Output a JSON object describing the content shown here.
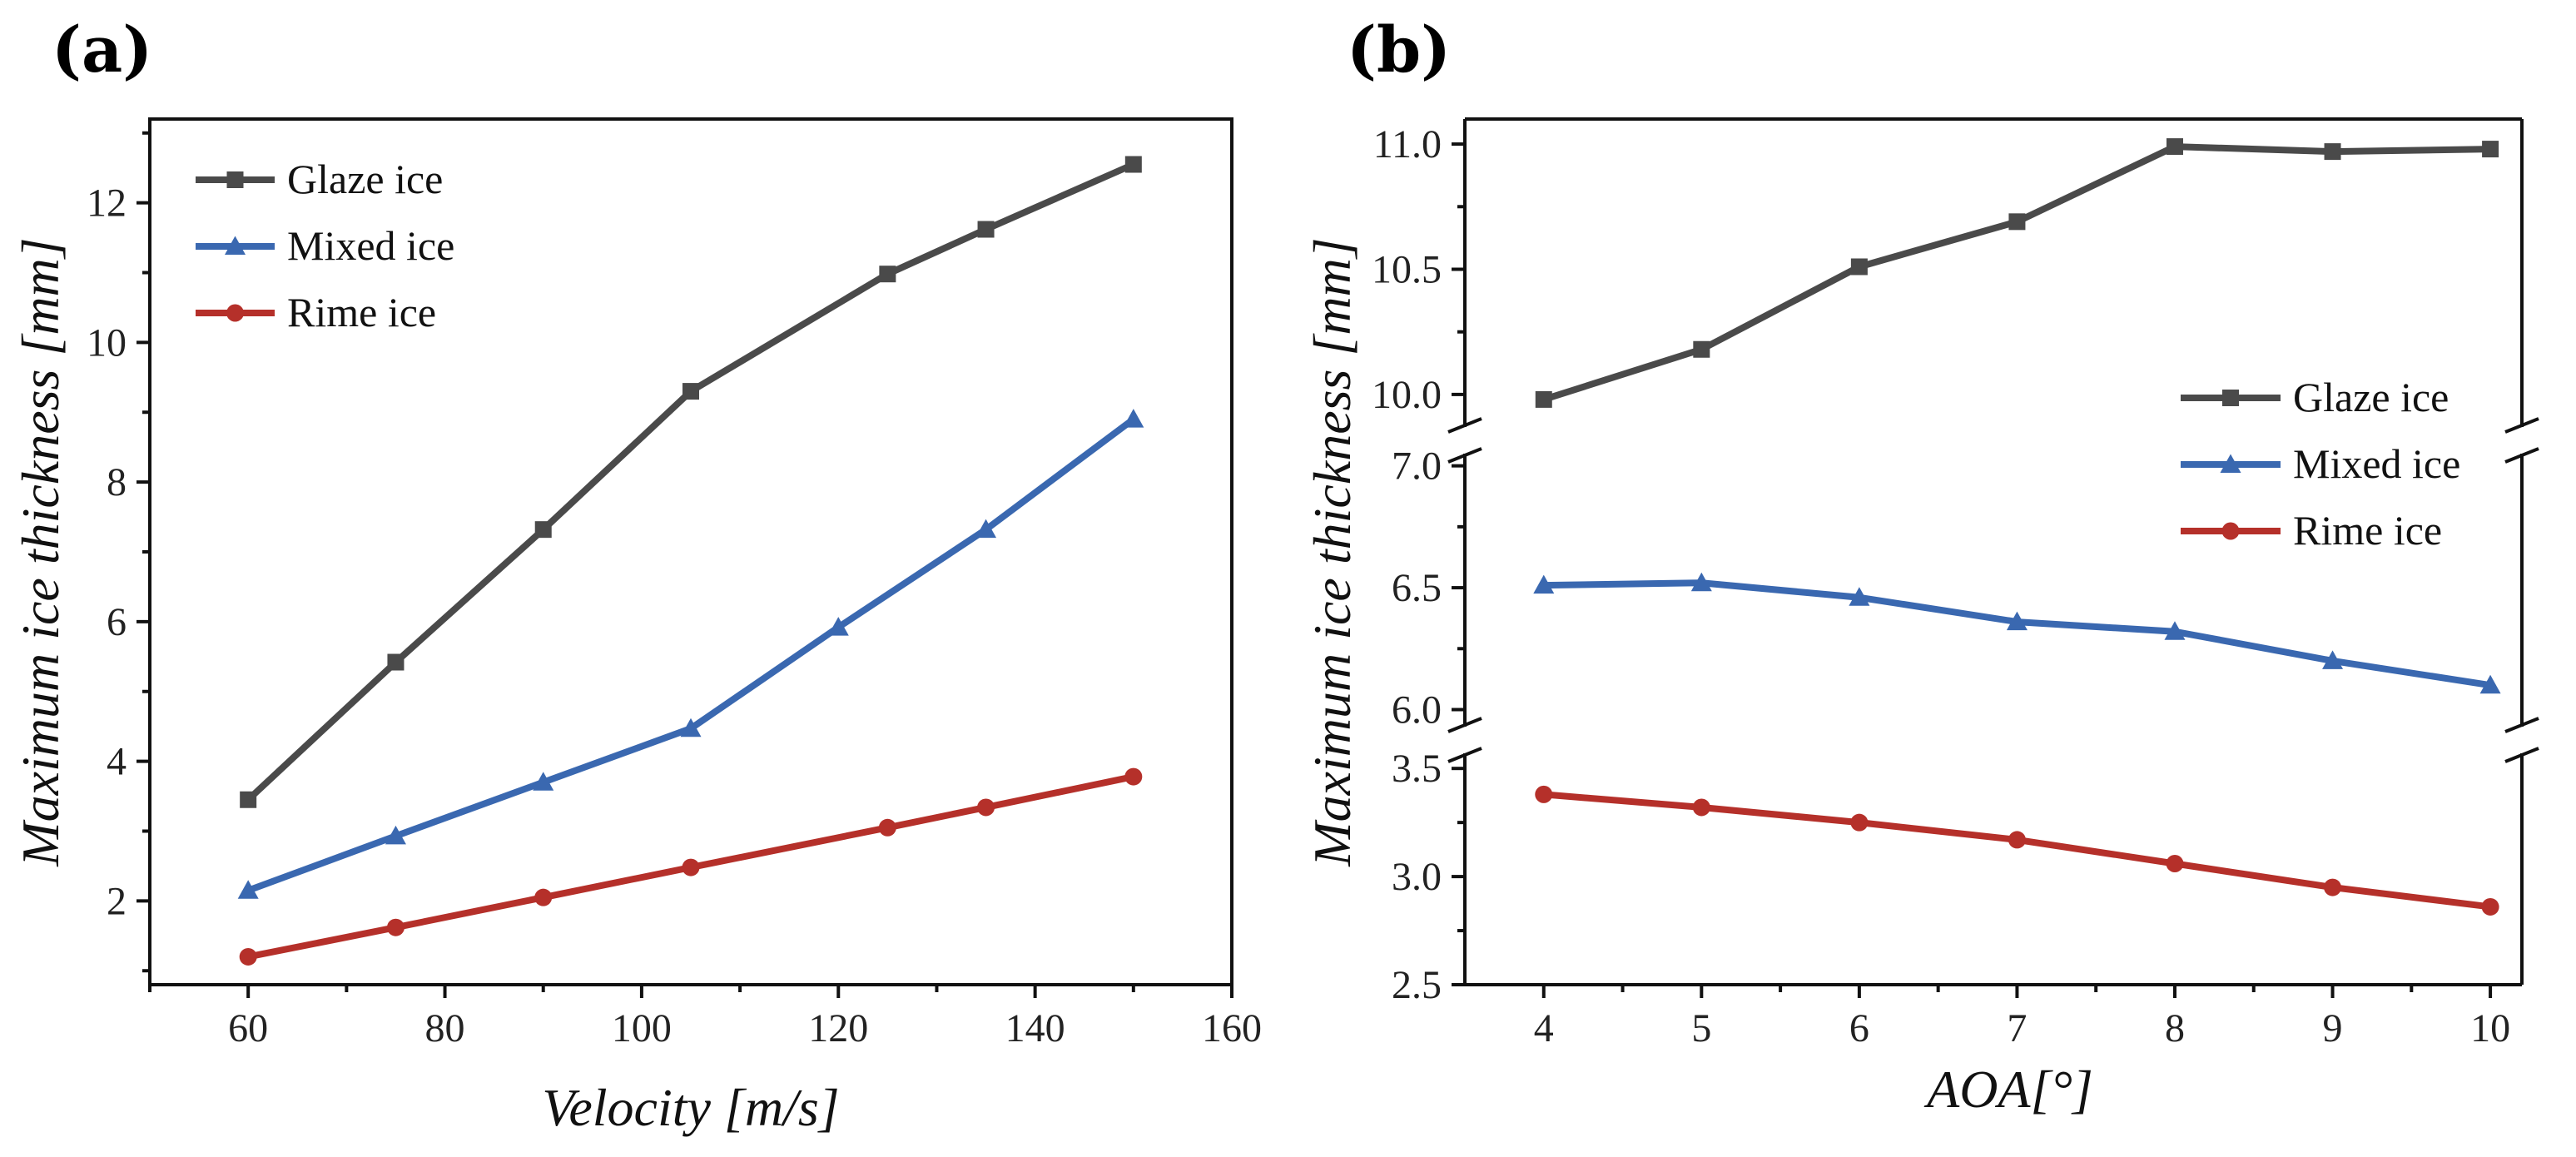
{
  "chart_data": [
    {
      "type": "line",
      "panel_label": "(a)",
      "xlabel": "Velocity [m/s]",
      "ylabel": "Maximum ice thickness [mm]",
      "xlim": [
        50,
        160
      ],
      "ylim": [
        0.8,
        13.2
      ],
      "xticks": [
        "60",
        "80",
        "100",
        "120",
        "140",
        "160"
      ],
      "xtick_values": [
        60,
        80,
        100,
        120,
        140,
        160
      ],
      "yticks": [
        "2",
        "4",
        "6",
        "8",
        "10",
        "12"
      ],
      "ytick_values": [
        2,
        4,
        6,
        8,
        10,
        12
      ],
      "legend_position": "top-left",
      "series": [
        {
          "name": "Glaze ice",
          "color": "#4a4a4a",
          "marker": "square",
          "x": [
            60,
            75,
            90,
            105,
            125,
            135,
            150
          ],
          "values": [
            3.45,
            5.42,
            7.32,
            9.3,
            10.98,
            11.62,
            12.55
          ]
        },
        {
          "name": "Mixed ice",
          "color": "#3a68b0",
          "marker": "triangle",
          "x": [
            60,
            75,
            90,
            105,
            120,
            135,
            150
          ],
          "values": [
            2.15,
            2.93,
            3.7,
            4.47,
            5.92,
            7.32,
            8.9
          ]
        },
        {
          "name": "Rime ice",
          "color": "#b5302a",
          "marker": "circle",
          "x": [
            60,
            75,
            90,
            105,
            125,
            135,
            150
          ],
          "values": [
            1.2,
            1.62,
            2.05,
            2.48,
            3.05,
            3.34,
            3.78
          ]
        }
      ]
    },
    {
      "type": "line",
      "panel_label": "(b)",
      "xlabel": "AOA[°]",
      "ylabel": "Maximum ice thickness [mm]",
      "xlim": [
        3.5,
        10.2
      ],
      "broken_y_axis": true,
      "y_segments": [
        {
          "range": [
            2.5,
            3.57
          ],
          "ticks": [
            "2.5",
            "3.0",
            "3.5"
          ],
          "tick_values": [
            2.5,
            3.0,
            3.5
          ]
        },
        {
          "range": [
            5.93,
            7.05
          ],
          "ticks": [
            "6.0",
            "6.5",
            "7.0"
          ],
          "tick_values": [
            6.0,
            6.5,
            7.0
          ]
        },
        {
          "range": [
            9.87,
            11.1
          ],
          "ticks": [
            "10.0",
            "10.5",
            "11.0"
          ],
          "tick_values": [
            10.0,
            10.5,
            11.0
          ]
        }
      ],
      "xticks": [
        "4",
        "5",
        "6",
        "7",
        "8",
        "9",
        "10"
      ],
      "xtick_values": [
        4,
        5,
        6,
        7,
        8,
        9,
        10
      ],
      "legend_position": "right",
      "series": [
        {
          "name": "Glaze ice",
          "color": "#4a4a4a",
          "marker": "square",
          "x": [
            4,
            5,
            6,
            7,
            8,
            9,
            10
          ],
          "values": [
            9.98,
            10.18,
            10.51,
            10.69,
            10.99,
            10.97,
            10.98
          ]
        },
        {
          "name": "Mixed ice",
          "color": "#3a68b0",
          "marker": "triangle",
          "x": [
            4,
            5,
            6,
            7,
            8,
            9,
            10
          ],
          "values": [
            6.51,
            6.52,
            6.46,
            6.36,
            6.32,
            6.2,
            6.1
          ]
        },
        {
          "name": "Rime ice",
          "color": "#b5302a",
          "marker": "circle",
          "x": [
            4,
            5,
            6,
            7,
            8,
            9,
            10
          ],
          "values": [
            3.38,
            3.32,
            3.25,
            3.17,
            3.06,
            2.95,
            2.86
          ]
        }
      ]
    }
  ]
}
